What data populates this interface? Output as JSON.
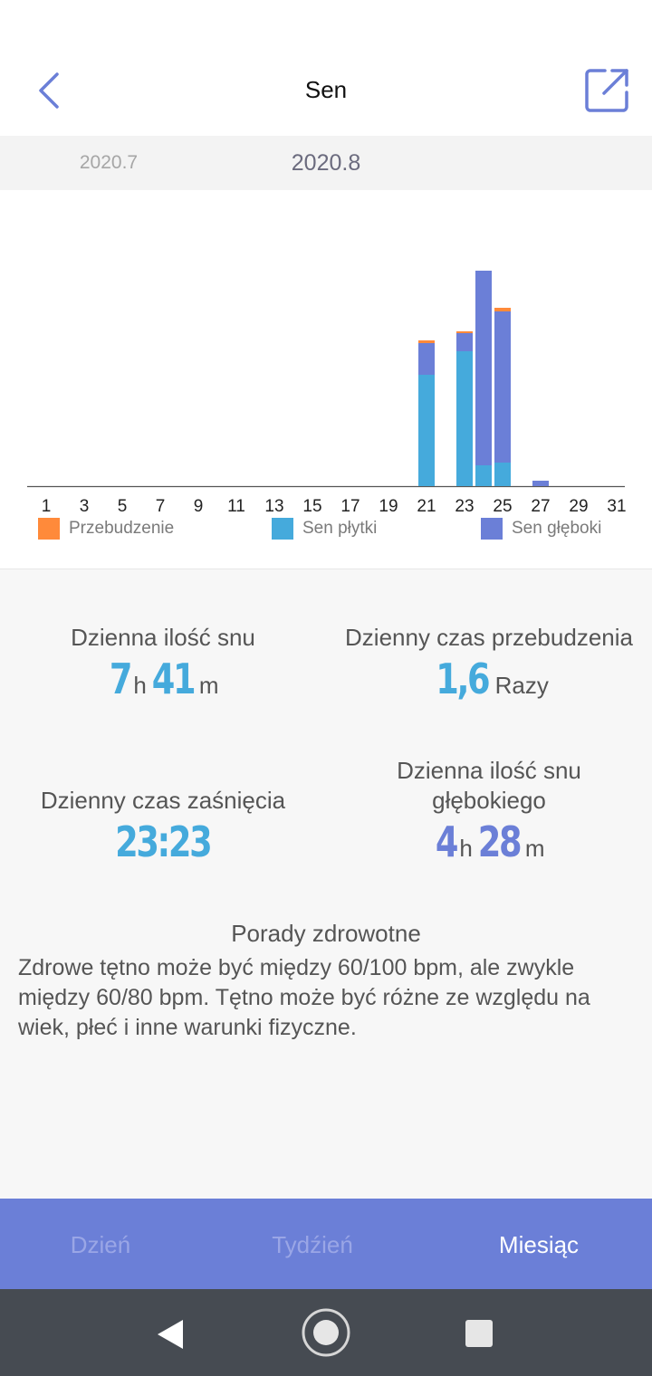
{
  "header": {
    "title": "Sen",
    "back_icon": "chevron-left-icon",
    "share_icon": "share-external-icon"
  },
  "months": {
    "previous": "2020.7",
    "current": "2020.8"
  },
  "chart_data": {
    "type": "bar",
    "stacked": true,
    "x_tick_labels": [
      "1",
      "3",
      "5",
      "7",
      "9",
      "11",
      "13",
      "15",
      "17",
      "19",
      "21",
      "23",
      "25",
      "27",
      "29",
      "31"
    ],
    "days": [
      21,
      23,
      24,
      25,
      27
    ],
    "series": [
      {
        "name": "Sen płytki",
        "color": "#45aadc",
        "values": [
          123,
          149,
          23,
          26,
          0
        ]
      },
      {
        "name": "Sen głęboki",
        "color": "#6b7fd7",
        "values": [
          35,
          20,
          215,
          167,
          6
        ]
      },
      {
        "name": "Przebudzenie",
        "color": "#ff8a3a",
        "values": [
          3,
          2,
          0,
          4,
          0
        ]
      }
    ],
    "legend_order": [
      "Przebudzenie",
      "Sen płytki",
      "Sen głęboki"
    ],
    "grid": false
  },
  "stats": {
    "daily_sleep": {
      "label": "Dzienna ilość snu",
      "hours": "7",
      "h_unit": "h",
      "minutes": "41",
      "m_unit": "m",
      "color": "#45aadc"
    },
    "daily_wake": {
      "label": "Dzienny czas przebudzenia",
      "value": "1,6",
      "unit": "Razy",
      "color": "#45aadc"
    },
    "fall_asleep": {
      "label": "Dzienny czas zaśnięcia",
      "value": "23:23",
      "color": "#45aadc"
    },
    "deep_sleep": {
      "label_line1": "Dzienna ilość snu",
      "label_line2": "głębokiego",
      "hours": "4",
      "h_unit": "h",
      "minutes": "28",
      "m_unit": "m",
      "color": "#6b7fd7"
    }
  },
  "tips": {
    "title": "Porady zdrowotne",
    "text": "Zdrowe tętno może być między 60/100 bpm, ale zwykle między 60/80 bpm. Tętno może być różne ze względu na wiek, płeć i inne warunki fizyczne."
  },
  "tabs": [
    {
      "label": "Dzień",
      "active": false
    },
    {
      "label": "Tydźień",
      "active": false
    },
    {
      "label": "Miesiąc",
      "active": true
    }
  ],
  "colors": {
    "accent": "#6b7fd7",
    "light_sleep": "#45aadc",
    "wake": "#ff8a3a",
    "tab_inactive": "#9aa6e6",
    "tab_active": "#ffffff"
  },
  "system_nav": {
    "back_icon": "triangle-back-icon",
    "home_icon": "circle-home-icon",
    "recents_icon": "square-recents-icon"
  }
}
